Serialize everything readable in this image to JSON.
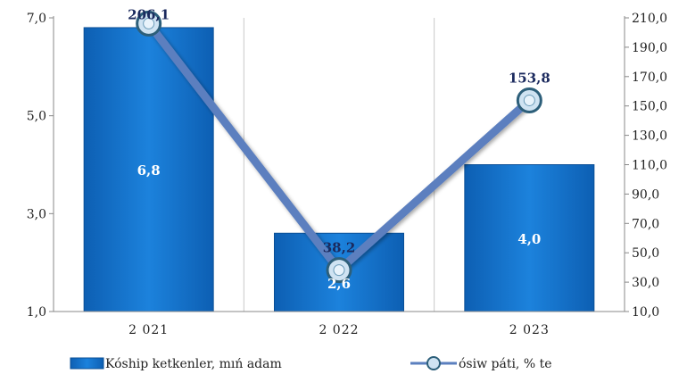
{
  "chart_data": {
    "type": "bar+line",
    "categories": [
      "2 021",
      "2 022",
      "2 023"
    ],
    "series": [
      {
        "name": "Kóship ketkenler, mıń adam",
        "type": "bar",
        "axis": "left",
        "values": [
          6.8,
          2.6,
          4.0
        ],
        "labels": [
          "6,8",
          "2,6",
          "4,0"
        ]
      },
      {
        "name": "ósiw páti, % te",
        "type": "line",
        "axis": "right",
        "values": [
          206.1,
          38.2,
          153.8
        ],
        "labels": [
          "206,1",
          "38,2",
          "153,8"
        ]
      }
    ],
    "y_left": {
      "lim": [
        1.0,
        7.0
      ],
      "ticks": [
        1.0,
        3.0,
        5.0,
        7.0
      ],
      "tick_labels": [
        "1,0",
        "3,0",
        "5,0",
        "7,0"
      ]
    },
    "y_right": {
      "lim": [
        10.0,
        210.0
      ],
      "ticks": [
        10,
        30,
        50,
        70,
        90,
        110,
        130,
        150,
        170,
        190,
        210
      ],
      "tick_labels": [
        "10,0",
        "30,0",
        "50,0",
        "70,0",
        "90,0",
        "110,0",
        "130,0",
        "150,0",
        "170,0",
        "190,0",
        "210,0"
      ]
    },
    "grid": "vertical",
    "legend": "bottom",
    "colors": {
      "bar": "#1a78d2",
      "line": "#5b7fbf",
      "marker_fill": "#cfe3f2",
      "marker_stroke": "#2d5f7a"
    }
  }
}
